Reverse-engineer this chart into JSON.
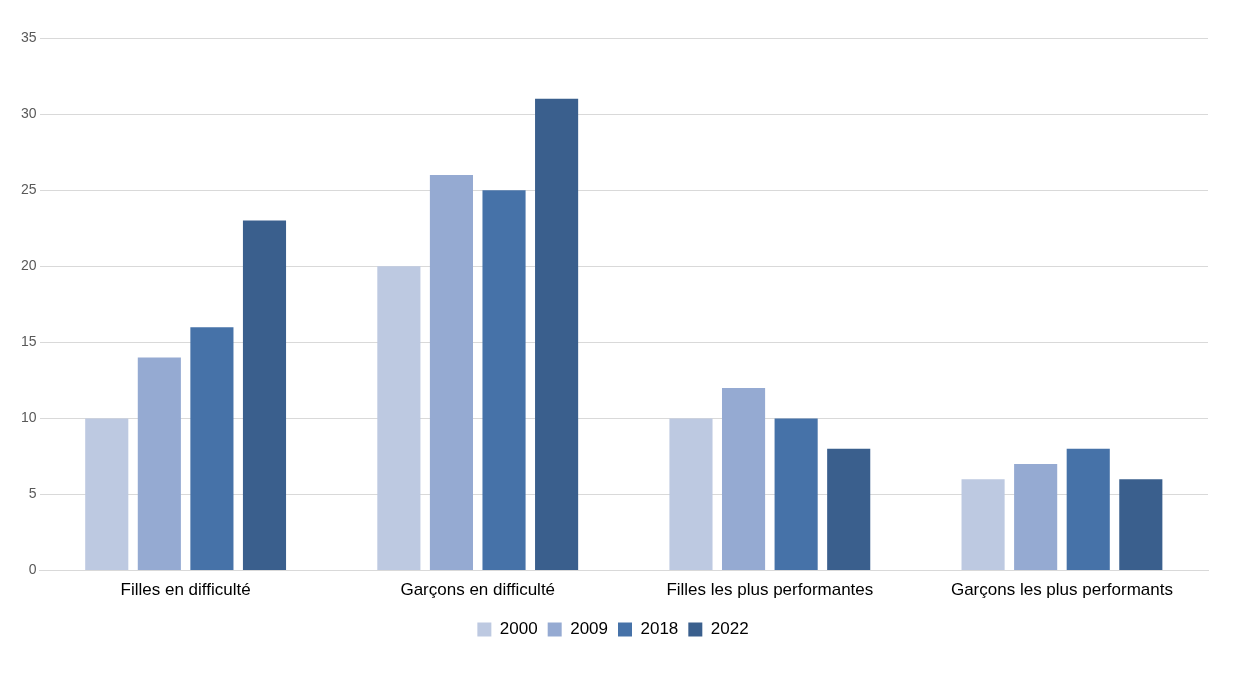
{
  "chart_data": {
    "type": "bar",
    "categories": [
      "Filles en difficulté",
      "Garçons en difficulté",
      "Filles les plus performantes",
      "Garçons les plus performants"
    ],
    "series": [
      {
        "name": "2000",
        "color": "#bdc9e1",
        "values": [
          10,
          20,
          10,
          6
        ]
      },
      {
        "name": "2009",
        "color": "#95aad2",
        "values": [
          14,
          26,
          12,
          7
        ]
      },
      {
        "name": "2018",
        "color": "#4672a8",
        "values": [
          16,
          25,
          10,
          8
        ]
      },
      {
        "name": "2022",
        "color": "#3a5f8d",
        "values": [
          23,
          31,
          8,
          6
        ]
      }
    ],
    "ylim": [
      0,
      35
    ],
    "yticks": [
      0,
      5,
      10,
      15,
      20,
      25,
      30,
      35
    ],
    "grid": "y",
    "legend": "bottom"
  }
}
